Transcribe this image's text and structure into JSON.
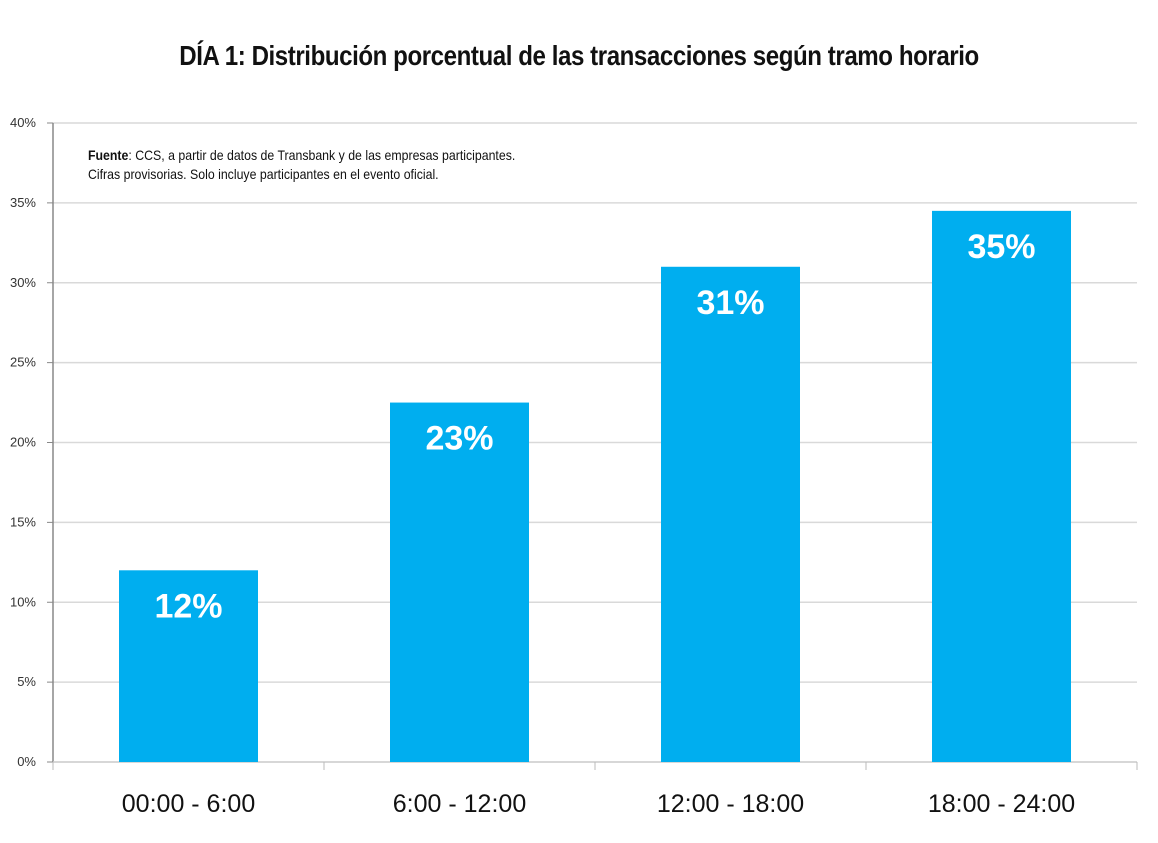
{
  "chart_data": {
    "type": "bar",
    "title": "DÍA 1: Distribución porcentual de las transacciones según tramo horario",
    "categories": [
      "00:00 - 6:00",
      "6:00 - 12:00",
      "12:00 - 18:00",
      "18:00 - 24:00"
    ],
    "values": [
      12,
      22.5,
      31,
      34.5
    ],
    "data_labels": [
      "12%",
      "23%",
      "31%",
      "35%"
    ],
    "xlabel": "",
    "ylabel": "",
    "ylim": [
      0,
      40
    ],
    "yticks": [
      0,
      5,
      10,
      15,
      20,
      25,
      30,
      35,
      40
    ],
    "ytick_labels": [
      "0%",
      "5%",
      "10%",
      "15%",
      "20%",
      "25%",
      "30%",
      "35%",
      "40%"
    ],
    "grid": true,
    "legend": "none",
    "bar_color": "#00AEEF",
    "note": {
      "source_label": "Fuente",
      "source_text": ": CCS, a partir de datos de Transbank y de las empresas participantes.",
      "line2": "Cifras provisorias. Solo incluye participantes en el evento oficial."
    }
  }
}
